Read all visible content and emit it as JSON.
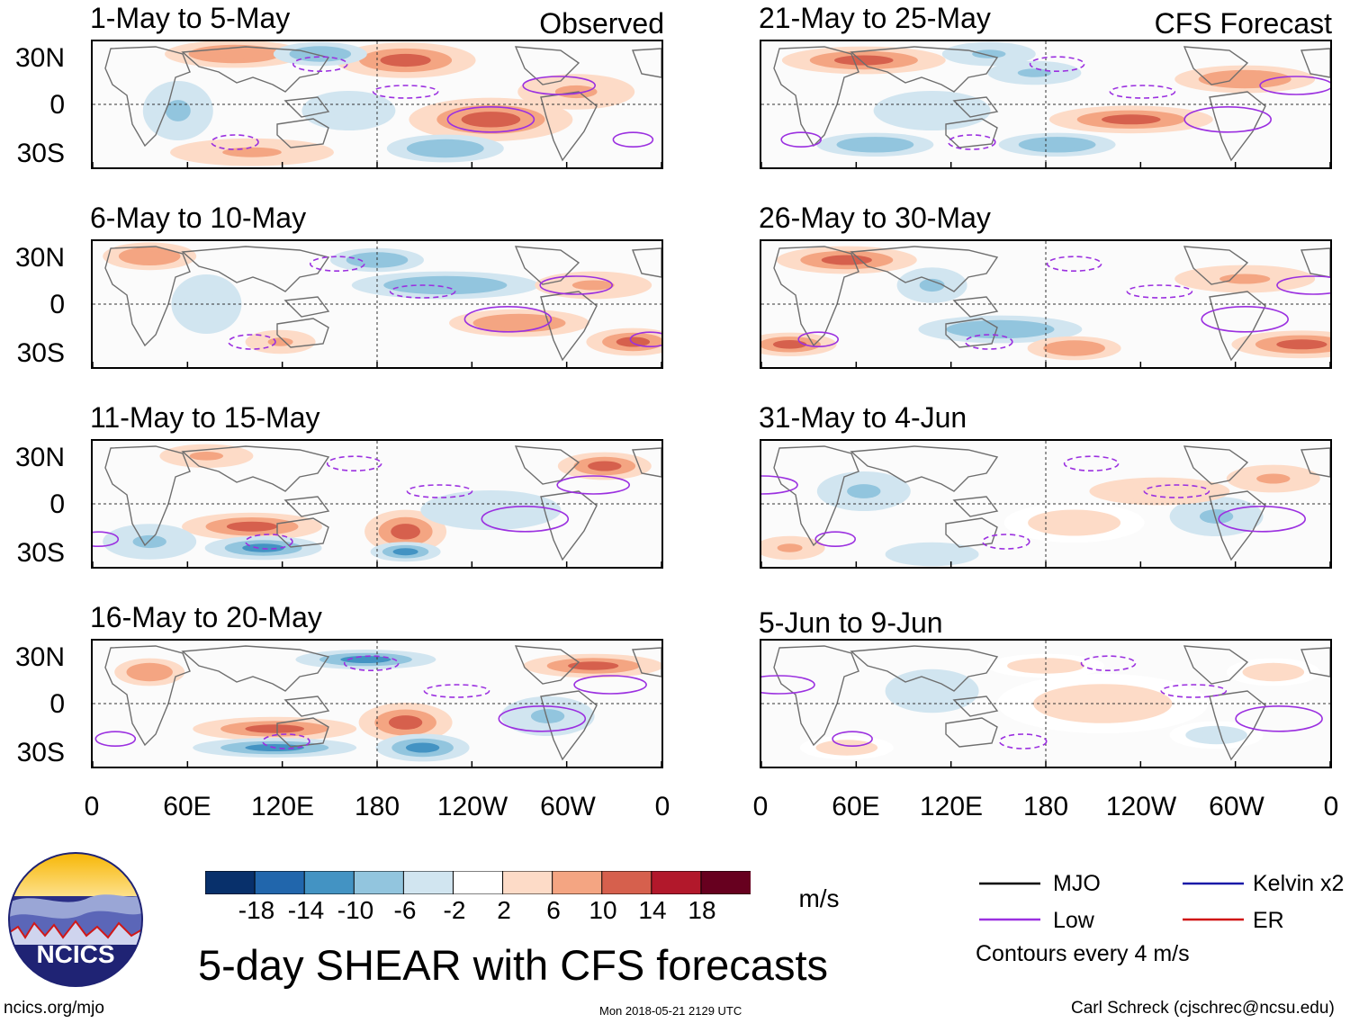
{
  "figure": {
    "title": "5-day SHEAR with CFS forecasts",
    "observed_label": "Observed",
    "forecast_label": "CFS Forecast",
    "units": "m/s",
    "contour_note": "Contours every 4 m/s",
    "logo_text": "NCICS",
    "url": "ncics.org/mjo",
    "timestamp": "Mon 2018-05-21 2129 UTC",
    "author": "Carl Schreck (cjschrec@ncsu.edu)"
  },
  "chart_data": {
    "type": "heatmap",
    "variable": "5-day vertical wind shear anomaly",
    "x_ticks": [
      "0",
      "60E",
      "120E",
      "180",
      "120W",
      "60W",
      "0"
    ],
    "y_ticks": [
      "30N",
      "0",
      "30S"
    ],
    "colorbar": {
      "ticks": [
        "-18",
        "-14",
        "-10",
        "-6",
        "-2",
        "2",
        "6",
        "10",
        "14",
        "18"
      ],
      "colors": [
        "#08306b",
        "#2166ac",
        "#4393c3",
        "#92c5de",
        "#d1e5f0",
        "#ffffff",
        "#fddbc7",
        "#f4a582",
        "#d6604d",
        "#b2182b",
        "#67001f"
      ]
    },
    "panels": {
      "observed": [
        {
          "period": "1-May to 5-May"
        },
        {
          "period": "6-May to 10-May"
        },
        {
          "period": "11-May to 15-May"
        },
        {
          "period": "16-May to 20-May"
        }
      ],
      "forecast": [
        {
          "period": "21-May to 25-May"
        },
        {
          "period": "26-May to 30-May"
        },
        {
          "period": "31-May to 4-Jun"
        },
        {
          "period": "5-Jun to 9-Jun"
        }
      ]
    },
    "legend": [
      {
        "label": "MJO",
        "color": "#000000"
      },
      {
        "label": "Kelvin x2",
        "color": "#1a1aa8"
      },
      {
        "label": "Low",
        "color": "#9b30e0"
      },
      {
        "label": "ER",
        "color": "#d01010"
      }
    ]
  }
}
